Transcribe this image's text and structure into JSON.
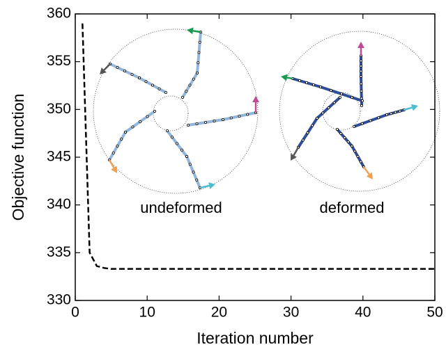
{
  "chart_data": {
    "type": "line",
    "x_label": "Iteration number",
    "y_label": "Objective function",
    "x": [
      1,
      2,
      3,
      4,
      5,
      10,
      20,
      30,
      40,
      50
    ],
    "series": [
      {
        "color": "#000000",
        "values": [
          359,
          335,
          333.6,
          333.4,
          333.3,
          333.3,
          333.3,
          333.3,
          333.3,
          333.3
        ]
      }
    ],
    "xlim": [
      0,
      50
    ],
    "xticks": [
      0,
      10,
      20,
      30,
      40,
      50
    ],
    "ylim": [
      330,
      360
    ],
    "yticks": [
      330,
      335,
      340,
      345,
      350,
      355,
      360
    ],
    "grid": false,
    "annotations": [
      "undeformed",
      "deformed"
    ]
  }
}
